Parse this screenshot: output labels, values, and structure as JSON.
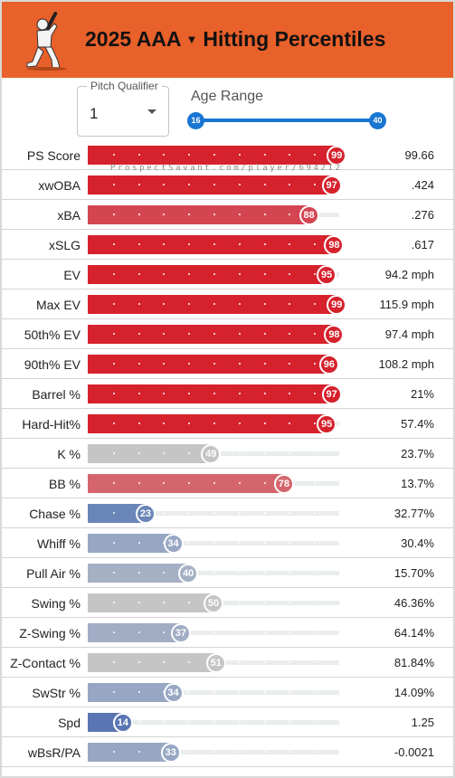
{
  "header": {
    "title_year_level": "2025 AAA",
    "title_suffix": "Hitting Percentiles",
    "logo": "batter-silhouette-icon",
    "background": "#e8602a"
  },
  "controls": {
    "pitch_qualifier_label": "Pitch Qualifier",
    "pitch_qualifier_value": "1",
    "age_range_label": "Age Range",
    "age_min": "16",
    "age_max": "40"
  },
  "watermark": "ProspectSavant.com/player/694212",
  "metrics": [
    {
      "label": "PS Score",
      "percentile": 99,
      "value": "99.66",
      "color": "#d6222d"
    },
    {
      "label": "xwOBA",
      "percentile": 97,
      "value": ".424",
      "color": "#d6222d"
    },
    {
      "label": "xBA",
      "percentile": 88,
      "value": ".276",
      "color": "#d44552"
    },
    {
      "label": "xSLG",
      "percentile": 98,
      "value": ".617",
      "color": "#d6222d"
    },
    {
      "label": "EV",
      "percentile": 95,
      "value": "94.2 mph",
      "color": "#d6222d"
    },
    {
      "label": "Max EV",
      "percentile": 99,
      "value": "115.9 mph",
      "color": "#d6222d"
    },
    {
      "label": "50th% EV",
      "percentile": 98,
      "value": "97.4 mph",
      "color": "#d6222d"
    },
    {
      "label": "90th% EV",
      "percentile": 96,
      "value": "108.2 mph",
      "color": "#d6222d"
    },
    {
      "label": "Barrel %",
      "percentile": 97,
      "value": "21%",
      "color": "#d6222d"
    },
    {
      "label": "Hard-Hit%",
      "percentile": 95,
      "value": "57.4%",
      "color": "#d6222d"
    },
    {
      "label": "K %",
      "percentile": 49,
      "value": "23.7%",
      "color": "#c5c5c5"
    },
    {
      "label": "BB %",
      "percentile": 78,
      "value": "13.7%",
      "color": "#d5656d"
    },
    {
      "label": "Chase %",
      "percentile": 23,
      "value": "32.77%",
      "color": "#6a85b8"
    },
    {
      "label": "Whiff %",
      "percentile": 34,
      "value": "30.4%",
      "color": "#97a7c3"
    },
    {
      "label": "Pull Air %",
      "percentile": 40,
      "value": "15.70%",
      "color": "#a5b0c4"
    },
    {
      "label": "Swing %",
      "percentile": 50,
      "value": "46.36%",
      "color": "#c5c5c5"
    },
    {
      "label": "Z-Swing %",
      "percentile": 37,
      "value": "64.14%",
      "color": "#a0adc4"
    },
    {
      "label": "Z-Contact %",
      "percentile": 51,
      "value": "81.84%",
      "color": "#c5c5c5"
    },
    {
      "label": "SwStr %",
      "percentile": 34,
      "value": "14.09%",
      "color": "#97a7c3"
    },
    {
      "label": "Spd",
      "percentile": 14,
      "value": "1.25",
      "color": "#5a76b2"
    },
    {
      "label": "wBsR/PA",
      "percentile": 33,
      "value": "-0.0021",
      "color": "#97a7c3"
    }
  ]
}
